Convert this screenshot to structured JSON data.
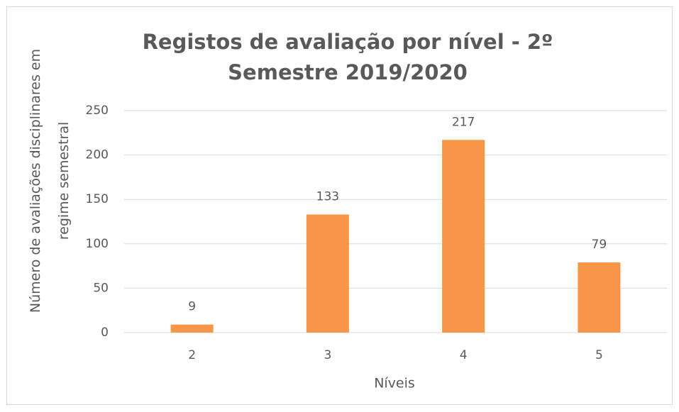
{
  "chart_data": {
    "type": "bar",
    "title": "Registos de avaliação por nível - 2º Semestre 2019/2020",
    "x_label": "Níveis",
    "y_label": "Número de avaliações disciplinares em regime semestral",
    "categories": [
      "2",
      "3",
      "4",
      "5"
    ],
    "values": [
      9,
      133,
      217,
      79
    ],
    "color": "#f79646",
    "ylim": [
      0,
      250
    ],
    "yticks": [
      0,
      50,
      100,
      150,
      200,
      250
    ],
    "grid": true
  }
}
